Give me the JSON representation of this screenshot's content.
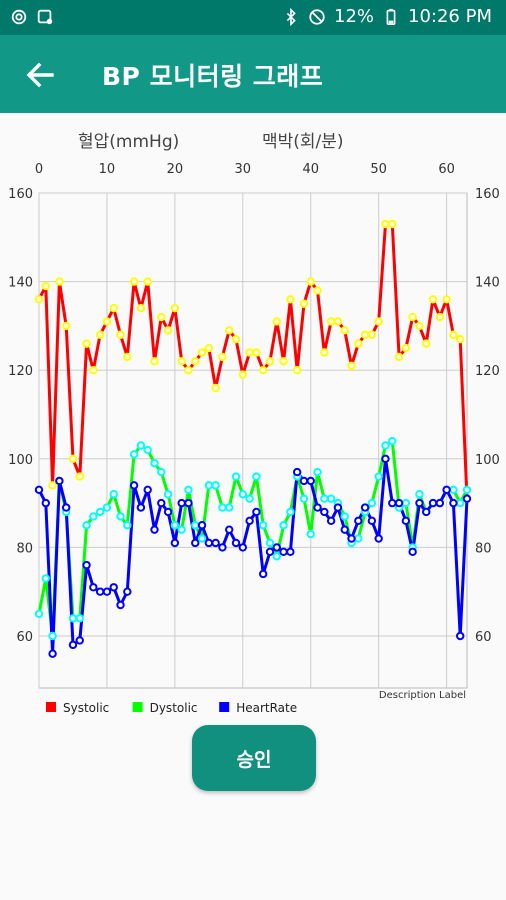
{
  "status": {
    "battery": "12%",
    "time": "10:26 PM"
  },
  "header": {
    "title": "BP 모니터링 그래프"
  },
  "chart_data": {
    "type": "line",
    "top_axis_label_left": "혈압(mmHg)",
    "top_axis_label_right": "맥박(회/분)",
    "xlim": [
      0,
      63
    ],
    "x_ticks": [
      0,
      10,
      20,
      30,
      40,
      50,
      60
    ],
    "ylim": [
      50,
      160
    ],
    "y_ticks": [
      60,
      80,
      100,
      120,
      140,
      160
    ],
    "description": "Description Label",
    "legend_position": "bottom-left",
    "grid": true,
    "series": [
      {
        "name": "Systolic",
        "color": "#ff0000",
        "marker_color": "#ffff00",
        "values": [
          136,
          139,
          94,
          140,
          130,
          100,
          96,
          126,
          120,
          128,
          131,
          134,
          128,
          123,
          140,
          134,
          140,
          122,
          132,
          129,
          134,
          122,
          120,
          122,
          124,
          125,
          116,
          123,
          129,
          127,
          119,
          124,
          124,
          120,
          122,
          131,
          122,
          136,
          120,
          135,
          140,
          138,
          124,
          131,
          131,
          129,
          121,
          126,
          128,
          128,
          131,
          153,
          153,
          123,
          125,
          132,
          130,
          126,
          136,
          132,
          136,
          128,
          127,
          91
        ]
      },
      {
        "name": "Dystolic",
        "color": "#00ff00",
        "marker_color": "#00ffff",
        "values": [
          65,
          73,
          60,
          95,
          88,
          64,
          64,
          85,
          87,
          88,
          89,
          92,
          87,
          85,
          101,
          103,
          102,
          99,
          97,
          92,
          85,
          84,
          93,
          85,
          82,
          94,
          94,
          89,
          89,
          96,
          92,
          91,
          96,
          85,
          81,
          78,
          85,
          88,
          96,
          91,
          83,
          97,
          91,
          91,
          90,
          87,
          81,
          82,
          88,
          90,
          96,
          103,
          104,
          89,
          90,
          80,
          92,
          88,
          90,
          90,
          93,
          93,
          90,
          93
        ]
      },
      {
        "name": "HeartRate",
        "color": "#0000ff",
        "marker_color": "#0000ff",
        "values": [
          93,
          90,
          56,
          95,
          89,
          58,
          59,
          76,
          71,
          70,
          70,
          71,
          67,
          70,
          94,
          89,
          93,
          84,
          90,
          88,
          81,
          90,
          90,
          81,
          85,
          81,
          81,
          80,
          84,
          81,
          80,
          86,
          88,
          74,
          79,
          80,
          79,
          79,
          97,
          95,
          95,
          89,
          88,
          86,
          89,
          84,
          82,
          86,
          89,
          86,
          82,
          100,
          90,
          90,
          86,
          79,
          90,
          88,
          90,
          90,
          93,
          90,
          60,
          91
        ]
      }
    ]
  },
  "actions": {
    "approve_label": "승인"
  }
}
